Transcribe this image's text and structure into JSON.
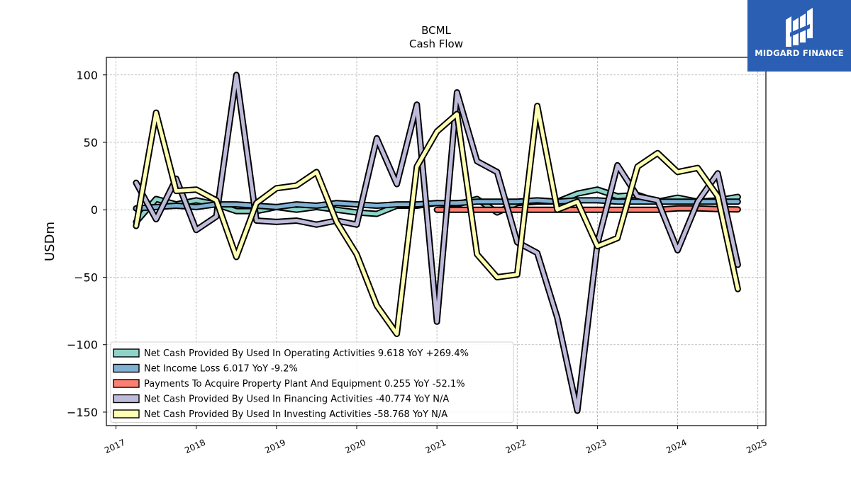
{
  "brand": {
    "name": "MIDGARD FINANCE",
    "color": "#2b5fb3"
  },
  "chart_data": {
    "type": "line",
    "title": "BCML",
    "subtitle": "Cash Flow",
    "xlabel": "",
    "ylabel": "USDm",
    "xlim": [
      2016.88,
      2025.1
    ],
    "ylim": [
      -160,
      113
    ],
    "yticks": [
      -150,
      -100,
      -50,
      0,
      50,
      100
    ],
    "yticklabels": [
      "−150",
      "−100",
      "−50",
      "0",
      "50",
      "100"
    ],
    "xticks": [
      2017,
      2018,
      2019,
      2020,
      2021,
      2022,
      2023,
      2024,
      2025
    ],
    "xticklabels": [
      "2017",
      "2018",
      "2019",
      "2020",
      "2021",
      "2022",
      "2023",
      "2024",
      "2025"
    ],
    "grid": true,
    "legend_position": "lower-left",
    "x": [
      2017.25,
      2017.5,
      2017.75,
      2018.0,
      2018.25,
      2018.5,
      2018.75,
      2019.0,
      2019.25,
      2019.5,
      2019.75,
      2020.0,
      2020.25,
      2020.5,
      2020.75,
      2021.0,
      2021.25,
      2021.5,
      2021.75,
      2022.0,
      2022.25,
      2022.5,
      2022.75,
      2023.0,
      2023.25,
      2023.5,
      2023.75,
      2024.0,
      2024.25,
      2024.5,
      2024.75
    ],
    "series": [
      {
        "name": "Net Cash Provided By Used In Operating Activities",
        "legend": "Net Cash Provided By Used In Operating Activities  9.618 YoY +269.4%",
        "color": "#8dd3c7",
        "values": [
          -9,
          8,
          4,
          7,
          4,
          -1,
          -1,
          2,
          0,
          2,
          0,
          -2,
          -3,
          3,
          3,
          5,
          4,
          8,
          -2,
          5,
          6,
          6,
          12,
          15,
          10,
          11,
          6,
          9,
          6,
          7,
          9.6
        ]
      },
      {
        "name": "Net Income Loss",
        "legend": "Net Income Loss  6.017 YoY -9.2%",
        "color": "#80b1d3",
        "values": [
          1,
          2,
          3,
          2,
          4,
          4,
          3,
          2,
          4,
          3,
          5,
          4,
          3,
          4,
          4,
          5,
          5,
          6,
          6,
          6,
          7,
          6,
          7,
          7,
          6,
          6,
          6,
          6,
          6,
          6,
          6.0
        ]
      },
      {
        "name": "Payments To Acquire Property Plant And Equipment",
        "legend": "Payments To Acquire Property Plant And Equipment  0.255 YoY -52.1%",
        "color": "#fb8072",
        "values": [
          null,
          null,
          null,
          null,
          null,
          null,
          null,
          null,
          null,
          null,
          null,
          null,
          null,
          null,
          null,
          0,
          0,
          0,
          0,
          0,
          0,
          0,
          0,
          0,
          0,
          0,
          0,
          1,
          1,
          0.5,
          0.3
        ]
      },
      {
        "name": "Net Cash Provided By Used In Financing Activities",
        "legend": "Net Cash Provided By Used In Financing Activities  -40.774 YoY N/A",
        "color": "#bebada",
        "values": [
          20,
          -7,
          23,
          -15,
          -5,
          100,
          -8,
          -9,
          -8,
          -11,
          -8,
          -11,
          53,
          19,
          78,
          -83,
          87,
          36,
          28,
          -24,
          -32,
          -80,
          -149,
          -25,
          33,
          10,
          7,
          -30,
          6,
          27,
          -40.8
        ]
      },
      {
        "name": "Net Cash Provided By Used In Investing Activities",
        "legend": "Net Cash Provided By Used In Investing Activities  -58.768 YoY N/A",
        "color": "#ffffb3",
        "values": [
          -12,
          72,
          14,
          15,
          7,
          -35,
          5,
          16,
          18,
          28,
          -9,
          -33,
          -71,
          -92,
          32,
          58,
          71,
          -33,
          -50,
          -48,
          77,
          0,
          6,
          -27,
          -21,
          32,
          42,
          28,
          31,
          10,
          -58.8
        ]
      }
    ]
  }
}
